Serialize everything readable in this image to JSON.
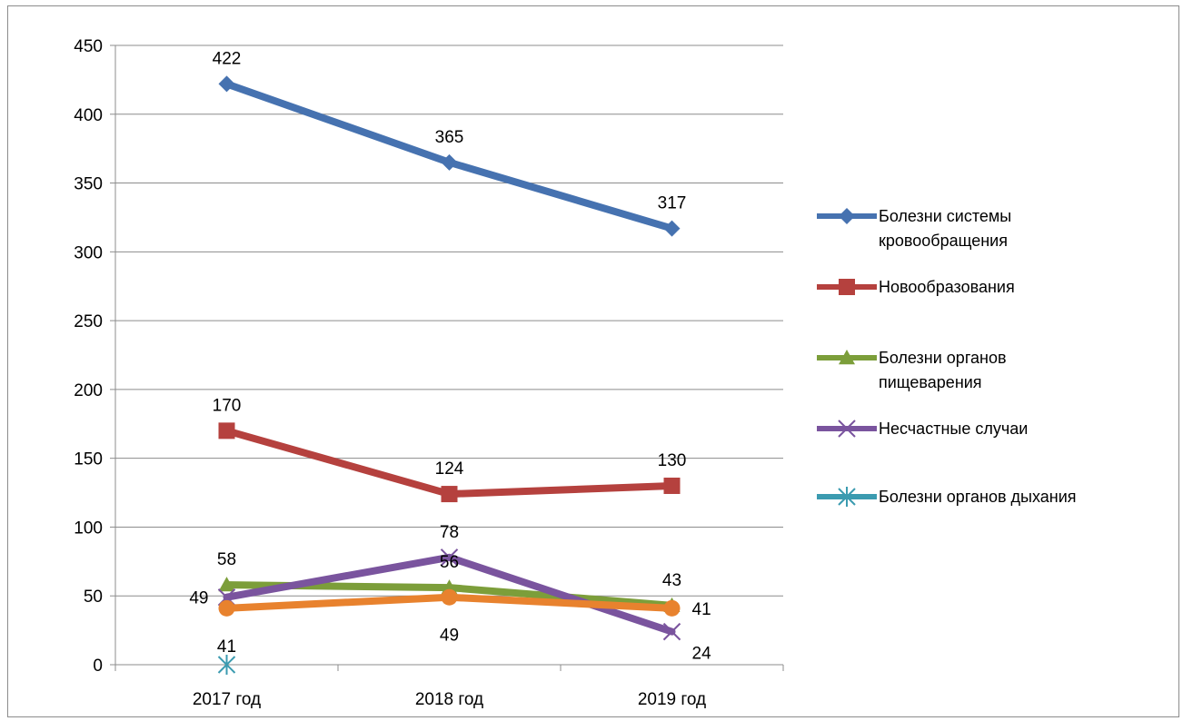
{
  "chart_data": {
    "type": "line",
    "title": "",
    "xlabel": "",
    "ylabel": "",
    "categories": [
      "2017 год",
      "2018 год",
      "2019 год"
    ],
    "ylim": [
      0,
      450
    ],
    "yticks": [
      0,
      50,
      100,
      150,
      200,
      250,
      300,
      350,
      400,
      450
    ],
    "grid": true,
    "legend_position": "right",
    "series": [
      {
        "name": "Болезни системы кровообращения",
        "values": [
          422,
          365,
          317
        ],
        "color": "#4672b0",
        "marker": "diamond",
        "labels": [
          "422",
          "365",
          "317"
        ],
        "label_side": [
          "above",
          "above",
          "above"
        ]
      },
      {
        "name": "Новообразования",
        "values": [
          170,
          124,
          130
        ],
        "color": "#b5413e",
        "marker": "square",
        "labels": [
          "170",
          "124",
          "130"
        ],
        "label_side": [
          "above",
          "above",
          "above"
        ]
      },
      {
        "name": "Болезни органов пищеварения",
        "values": [
          58,
          56,
          43
        ],
        "color": "#7c9e3a",
        "marker": "triangle",
        "labels": [
          "58",
          "56",
          "43"
        ],
        "label_side": [
          "above",
          "above",
          "above"
        ]
      },
      {
        "name": "Несчастные случаи",
        "values": [
          49,
          78,
          24
        ],
        "color": "#7a549e",
        "marker": "x",
        "labels": [
          "49",
          "78",
          "24"
        ],
        "label_side": [
          "left",
          "above",
          "right-below"
        ]
      },
      {
        "name": "Болезни органов дыхания",
        "values": [
          0,
          null,
          null
        ],
        "color": "#3b9bb0",
        "marker": "star",
        "labels": [],
        "label_side": []
      },
      {
        "name": "",
        "values": [
          41,
          49,
          41
        ],
        "color": "#e8822e",
        "marker": "circle",
        "labels": [
          "41",
          "49",
          "41"
        ],
        "label_side": [
          "below",
          "below",
          "right"
        ],
        "in_legend": false
      }
    ]
  }
}
